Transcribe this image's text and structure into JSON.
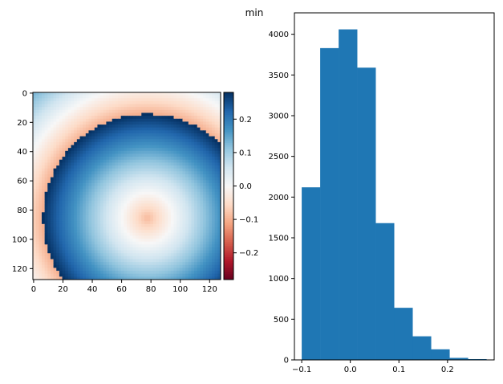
{
  "figure_title": "min",
  "chart_data": [
    {
      "type": "heatmap",
      "title": "",
      "xlabel": "",
      "ylabel": "",
      "x_ticks": [
        "0",
        "20",
        "40",
        "60",
        "80",
        "100",
        "120"
      ],
      "y_ticks": [
        "0",
        "20",
        "40",
        "60",
        "80",
        "100",
        "120"
      ],
      "xlim": [
        0,
        128
      ],
      "ylim": [
        128,
        0
      ],
      "rows": 128,
      "cols": 128,
      "pattern": {
        "kind": "concentric rings wrapped into [-0.1, 0.28]",
        "center_x": 78,
        "center_y": 86,
        "center_value": -0.09,
        "slope_per_cell": 0.0052,
        "wrap_min": -0.1,
        "wrap_max": 0.28
      },
      "colormap": "RdBu",
      "colormap_stops": [
        "#67001f",
        "#b2182b",
        "#d6604d",
        "#f4a582",
        "#fddbc7",
        "#f7f7f7",
        "#d1e5f0",
        "#92c5de",
        "#4393c3",
        "#2166ac",
        "#053061"
      ],
      "colorbar": {
        "vmin": -0.28,
        "vmax": 0.28,
        "ticks": [
          "0.2",
          "0.1",
          "0.0",
          "−0.1",
          "−0.2"
        ]
      }
    },
    {
      "type": "bar",
      "title": "",
      "xlabel": "",
      "ylabel": "",
      "bin_edges": [
        -0.1,
        -0.062,
        -0.024,
        0.014,
        0.052,
        0.09,
        0.128,
        0.166,
        0.204,
        0.242,
        0.28
      ],
      "values": [
        2120,
        3830,
        4060,
        3590,
        1680,
        640,
        290,
        130,
        25,
        10
      ],
      "x_ticks": [
        "−0.1",
        "0.0",
        "0.1",
        "0.2"
      ],
      "y_ticks": [
        "0",
        "500",
        "1000",
        "1500",
        "2000",
        "2500",
        "3000",
        "3500",
        "4000"
      ],
      "xlim": [
        -0.115,
        0.296
      ],
      "ylim": [
        0,
        4263
      ],
      "bar_color": "#1f77b4"
    }
  ]
}
